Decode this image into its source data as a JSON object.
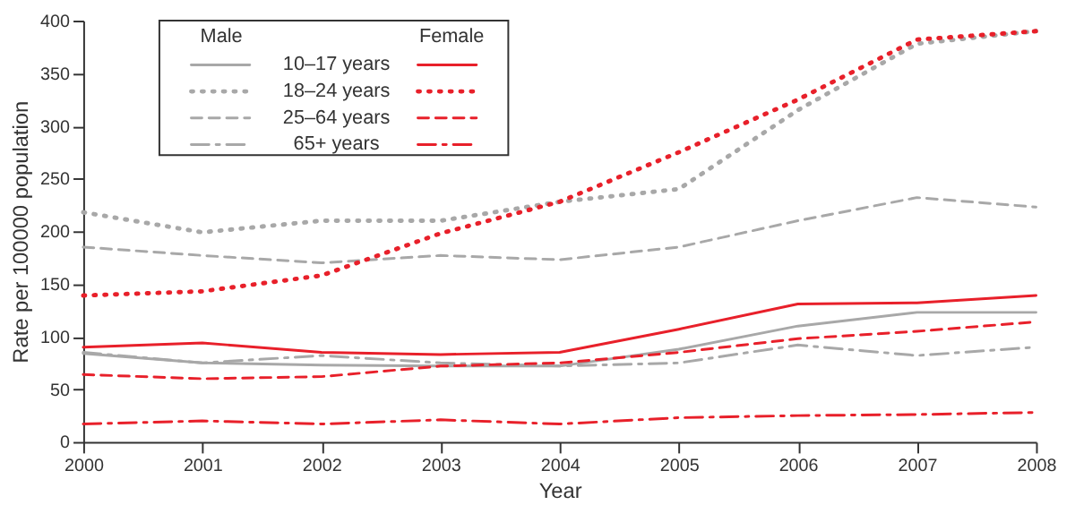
{
  "chart_data": {
    "type": "line",
    "xlabel": "Year",
    "ylabel": "Rate per 100000 population",
    "x": [
      2000,
      2001,
      2002,
      2003,
      2004,
      2005,
      2006,
      2007,
      2008
    ],
    "xlim": [
      2000,
      2008
    ],
    "xticks": [
      2000,
      2001,
      2002,
      2003,
      2004,
      2005,
      2006,
      2007,
      2008
    ],
    "ylim": [
      0,
      400
    ],
    "yticks": [
      0,
      50,
      100,
      150,
      200,
      250,
      300,
      350,
      400
    ],
    "grid": false,
    "legend": "top left",
    "marker": "none",
    "annotations": [
      "Male",
      "Female"
    ],
    "series": [
      {
        "name": "10–17 years",
        "color": "#a8a8a8",
        "line_style": "solid",
        "values": [
          84,
          75,
          73,
          72,
          72,
          88,
          110,
          123,
          123
        ]
      },
      {
        "name": "18–24 years",
        "color": "#a8a8a8",
        "line_style": "dotted",
        "values": [
          218,
          199,
          210,
          210,
          228,
          240,
          315,
          378,
          390
        ]
      },
      {
        "name": "25–64 years",
        "color": "#a8a8a8",
        "line_style": "dashed",
        "values": [
          185,
          177,
          170,
          177,
          173,
          185,
          210,
          232,
          223
        ]
      },
      {
        "name": "65+ years",
        "color": "#a8a8a8",
        "line_style": "dashdot",
        "values": [
          85,
          75,
          82,
          75,
          72,
          75,
          92,
          82,
          90
        ]
      },
      {
        "color": "#e8202a",
        "line_style": "solid",
        "values": [
          90,
          94,
          85,
          83,
          85,
          107,
          131,
          132,
          139
        ]
      },
      {
        "color": "#e8202a",
        "line_style": "dotted",
        "values": [
          139,
          143,
          158,
          198,
          228,
          275,
          325,
          382,
          390
        ]
      },
      {
        "color": "#e8202a",
        "line_style": "dashed",
        "values": [
          64,
          60,
          62,
          72,
          75,
          85,
          98,
          105,
          114
        ]
      },
      {
        "color": "#e8202a",
        "line_style": "dashdot",
        "values": [
          17,
          20,
          17,
          21,
          17,
          23,
          25,
          26,
          28
        ]
      }
    ]
  }
}
